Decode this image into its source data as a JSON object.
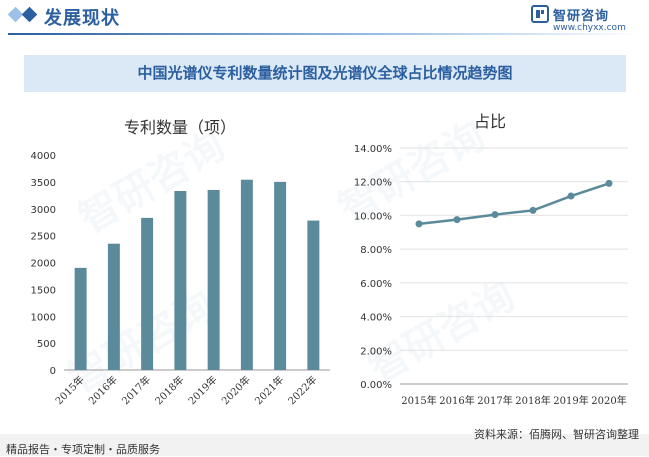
{
  "header": {
    "section_title": "发展现状",
    "brand_name": "智研咨询",
    "brand_url": "www.chyxx.com",
    "colors": {
      "accent": "#2b5fa0",
      "diamond_light": "#9cc0e6"
    }
  },
  "banner": {
    "title": "中国光谱仪专利数量统计图及光谱仪全球占比情况趋势图"
  },
  "watermark_text": "智研咨询",
  "chart_data": [
    {
      "type": "bar",
      "title": "专利数量（项）",
      "categories": [
        "2015年",
        "2016年",
        "2017年",
        "2018年",
        "2019年",
        "2020年",
        "2021年",
        "2022年"
      ],
      "values": [
        1900,
        2350,
        2830,
        3330,
        3350,
        3540,
        3500,
        2780
      ],
      "ylim": [
        0,
        4000
      ],
      "yticks": [
        "0",
        "500",
        "1000",
        "1500",
        "2000",
        "2500",
        "3000",
        "3500",
        "4000"
      ],
      "grid": false,
      "bar_color": "#5b8a9a"
    },
    {
      "type": "line",
      "title": "占比",
      "categories": [
        "2015年",
        "2016年",
        "2017年",
        "2018年",
        "2019年",
        "2020年"
      ],
      "values": [
        9.5,
        9.75,
        10.05,
        10.3,
        11.15,
        11.9
      ],
      "ylim": [
        0,
        14
      ],
      "yticks": [
        "0.00%",
        "2.00%",
        "4.00%",
        "6.00%",
        "8.00%",
        "10.00%",
        "12.00%",
        "14.00%"
      ],
      "grid": true,
      "line_color": "#5b8a9a"
    }
  ],
  "footer": {
    "left": "精品报告・专项定制・品质服务",
    "source": "资料来源：佰腾网、智研咨询整理"
  }
}
